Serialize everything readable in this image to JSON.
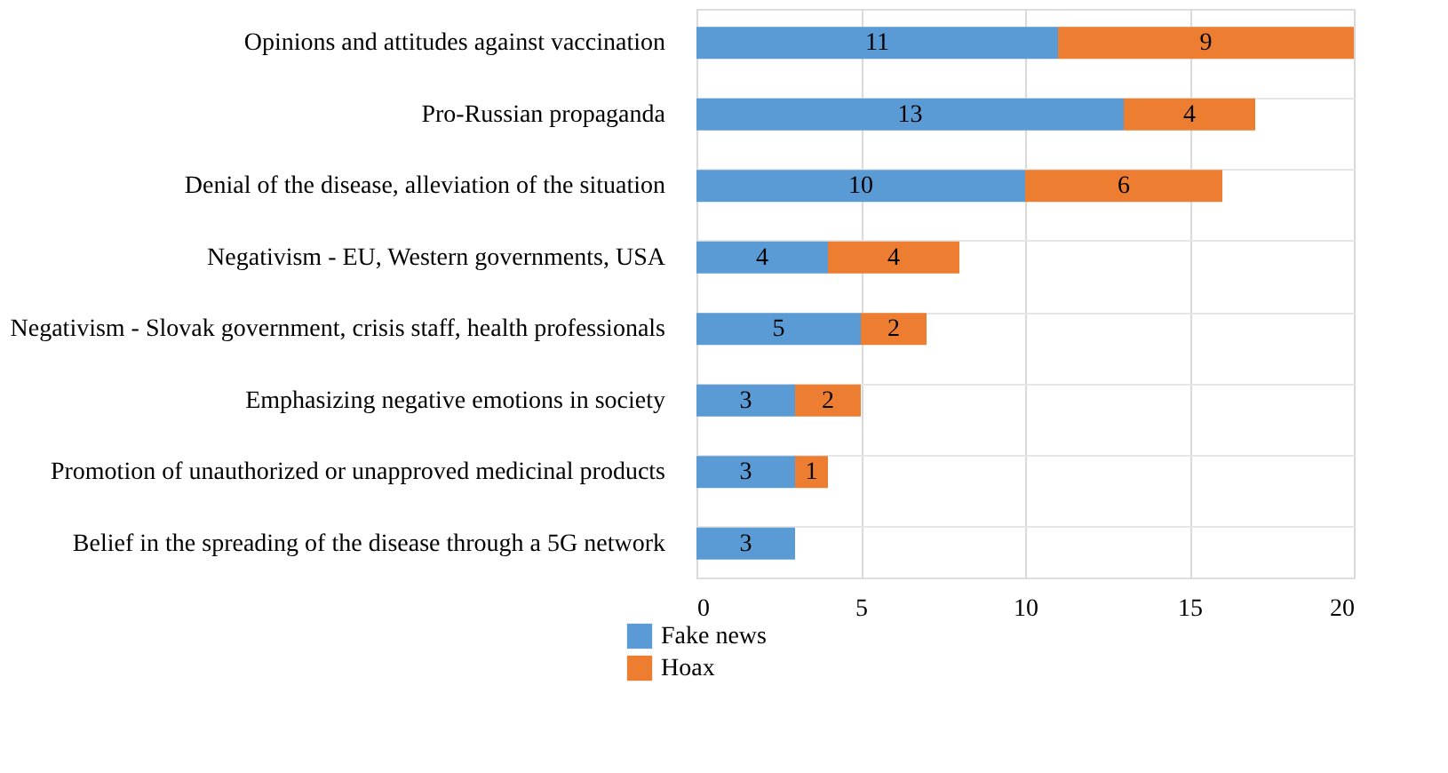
{
  "chart_data": {
    "type": "bar",
    "orientation": "horizontal",
    "stacked": true,
    "data_labels": true,
    "grid": true,
    "legend": "bottom left",
    "categories": [
      "Opinions and attitudes against vaccination",
      "Pro-Russian propaganda",
      "Denial of the disease, alleviation of the situation",
      "Negativism - EU, Western governments, USA",
      "Negativism - Slovak government, crisis staff, health professionals",
      "Emphasizing negative emotions in society",
      "Promotion of unauthorized or unapproved medicinal products",
      "Belief in the spreading of the disease through a 5G network"
    ],
    "series": [
      {
        "name": "Fake news",
        "color": "#5b9bd5",
        "values": [
          11,
          13,
          10,
          4,
          5,
          3,
          3,
          3
        ]
      },
      {
        "name": "Hoax",
        "color": "#ed7d31",
        "values": [
          9,
          4,
          6,
          4,
          2,
          2,
          1,
          null
        ]
      }
    ],
    "xlim": [
      0,
      20
    ],
    "xticks": [
      0,
      5,
      10,
      15,
      20
    ]
  }
}
